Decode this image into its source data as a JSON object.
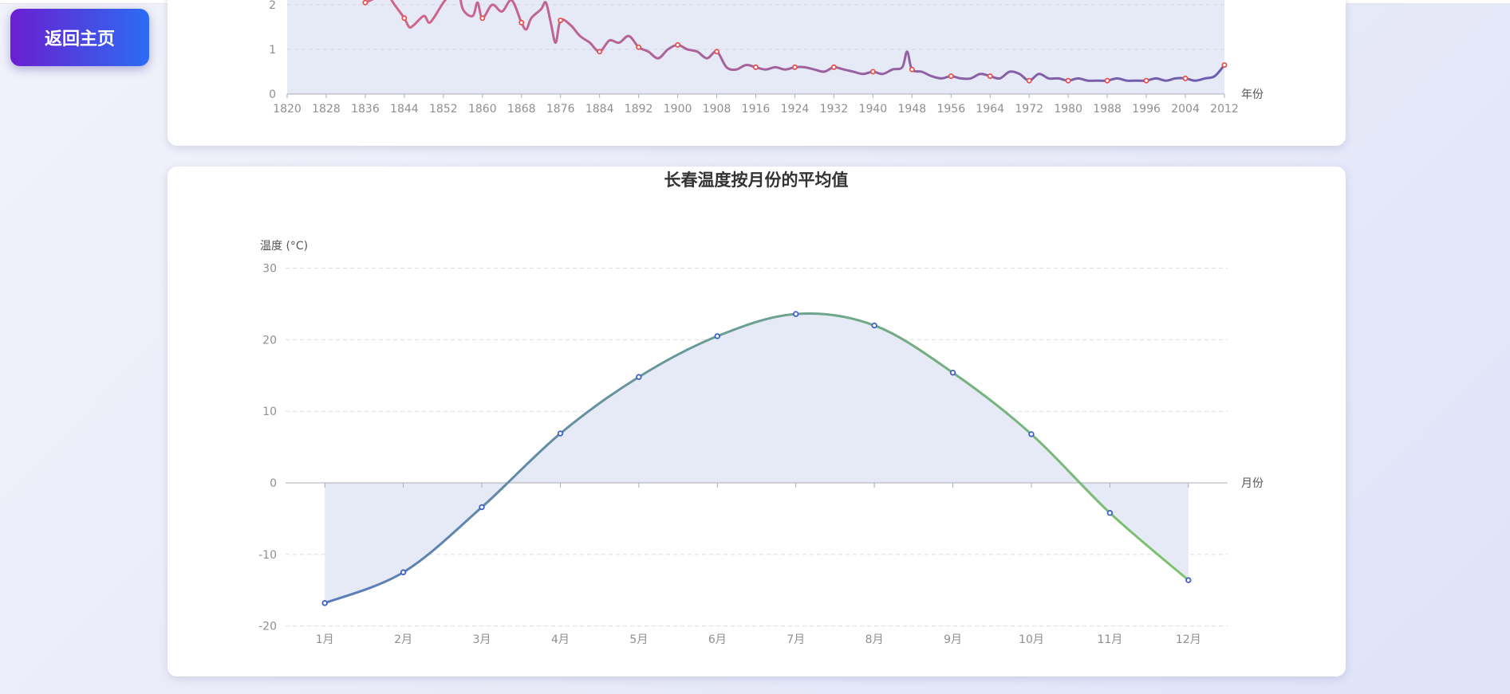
{
  "nav": {
    "back_label": "返回主页"
  },
  "chart_data": [
    {
      "type": "area",
      "title": "",
      "xlabel": "年份",
      "ylabel": "",
      "x_ticks": [
        "1820",
        "1828",
        "1836",
        "1844",
        "1852",
        "1860",
        "1868",
        "1876",
        "1884",
        "1892",
        "1900",
        "1908",
        "1916",
        "1924",
        "1932",
        "1940",
        "1948",
        "1956",
        "1964",
        "1972",
        "1980",
        "1988",
        "1996",
        "2004",
        "2012"
      ],
      "y_ticks": [
        "0",
        "1",
        "2"
      ],
      "xlim": [
        1820,
        2012
      ],
      "ylim": [
        0,
        2
      ],
      "series": [
        {
          "x": [
            1836,
            1838,
            1840,
            1842,
            1844,
            1845,
            1846,
            1848,
            1849,
            1850,
            1852,
            1854,
            1855,
            1856,
            1858,
            1859,
            1860,
            1862,
            1864,
            1866,
            1868,
            1869,
            1870,
            1872,
            1873,
            1874,
            1875,
            1876,
            1878,
            1880,
            1882,
            1884,
            1886,
            1888,
            1890,
            1892,
            1894,
            1896,
            1898,
            1900,
            1902,
            1904,
            1906,
            1908,
            1910,
            1912,
            1914,
            1916,
            1918,
            1920,
            1922,
            1924,
            1926,
            1928,
            1930,
            1932,
            1934,
            1936,
            1938,
            1940,
            1942,
            1944,
            1946,
            1947,
            1948,
            1950,
            1952,
            1954,
            1956,
            1958,
            1960,
            1962,
            1964,
            1966,
            1968,
            1970,
            1972,
            1974,
            1976,
            1978,
            1980,
            1982,
            1984,
            1986,
            1988,
            1990,
            1992,
            1994,
            1996,
            1998,
            2000,
            2002,
            2004,
            2006,
            2008,
            2010,
            2012
          ],
          "values": [
            2.05,
            2.15,
            2.3,
            2.0,
            1.7,
            1.5,
            1.55,
            1.75,
            1.6,
            1.7,
            2.05,
            2.3,
            2.4,
            1.9,
            1.75,
            2.05,
            1.7,
            2.0,
            1.85,
            2.1,
            1.6,
            1.45,
            1.7,
            1.9,
            2.05,
            1.6,
            1.15,
            1.65,
            1.55,
            1.3,
            1.15,
            0.95,
            1.2,
            1.15,
            1.3,
            1.05,
            0.95,
            0.8,
            1.0,
            1.1,
            1.0,
            0.95,
            0.8,
            0.95,
            0.6,
            0.55,
            0.65,
            0.6,
            0.55,
            0.6,
            0.55,
            0.6,
            0.6,
            0.55,
            0.5,
            0.6,
            0.55,
            0.5,
            0.45,
            0.5,
            0.45,
            0.55,
            0.6,
            0.95,
            0.55,
            0.5,
            0.4,
            0.35,
            0.4,
            0.35,
            0.35,
            0.45,
            0.4,
            0.35,
            0.5,
            0.45,
            0.3,
            0.45,
            0.35,
            0.35,
            0.3,
            0.35,
            0.3,
            0.3,
            0.3,
            0.35,
            0.3,
            0.3,
            0.3,
            0.35,
            0.3,
            0.35,
            0.35,
            0.3,
            0.35,
            0.4,
            0.65
          ],
          "color_start": "#d4678a",
          "color_end": "#6a5db0",
          "marker_color": "#e8534f"
        }
      ]
    },
    {
      "type": "line",
      "title": "长春温度按月份的平均值",
      "xlabel": "月份",
      "ylabel": "温度 (°C)",
      "categories": [
        "1月",
        "2月",
        "3月",
        "4月",
        "5月",
        "6月",
        "7月",
        "8月",
        "9月",
        "10月",
        "11月",
        "12月"
      ],
      "y_ticks": [
        "30",
        "20",
        "10",
        "0",
        "-10",
        "-20"
      ],
      "ylim": [
        -20,
        30
      ],
      "grid": true,
      "series": [
        {
          "values": [
            -16.8,
            -12.5,
            -3.4,
            6.9,
            14.8,
            20.5,
            23.6,
            22.0,
            15.4,
            6.8,
            -4.2,
            -13.6
          ],
          "color_start": "#5a7bb8",
          "color_end": "#7dc46a",
          "marker_color": "#3f5fc7",
          "area_color": "#e6e9f6"
        }
      ]
    }
  ]
}
